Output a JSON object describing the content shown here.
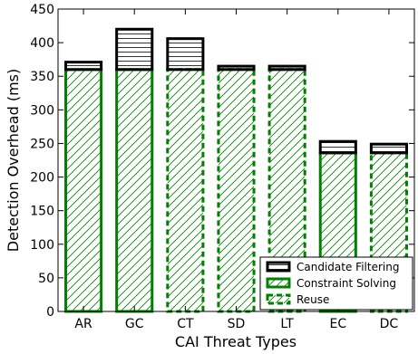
{
  "chart_data": {
    "type": "bar",
    "stacked": true,
    "categories": [
      "AR",
      "GC",
      "CT",
      "SD",
      "LT",
      "EC",
      "DC"
    ],
    "series": [
      {
        "name": "Constraint Solving",
        "color": "#008000",
        "hatch": "diagonal",
        "border": "solid",
        "values": [
          360,
          360,
          null,
          null,
          null,
          236,
          null
        ]
      },
      {
        "name": "Reuse",
        "color": "#008000",
        "hatch": "diagonal",
        "border": "dashed",
        "values": [
          null,
          null,
          360,
          360,
          360,
          null,
          236
        ]
      },
      {
        "name": "Candidate Filtering",
        "color": "#000000",
        "hatch": "horizontal",
        "border": "solid",
        "values": [
          11,
          60,
          46,
          5,
          5,
          17,
          13
        ]
      }
    ],
    "xlabel": "CAI Threat Types",
    "ylabel": "Detection Overhead (ms)",
    "ylim": [
      0,
      450
    ],
    "yticks": [
      0,
      50,
      100,
      150,
      200,
      250,
      300,
      350,
      400,
      450
    ],
    "grid": false,
    "legend": {
      "placement": "bottom-right",
      "entries": [
        "Candidate Filtering",
        "Constraint Solving",
        "Reuse"
      ]
    }
  }
}
